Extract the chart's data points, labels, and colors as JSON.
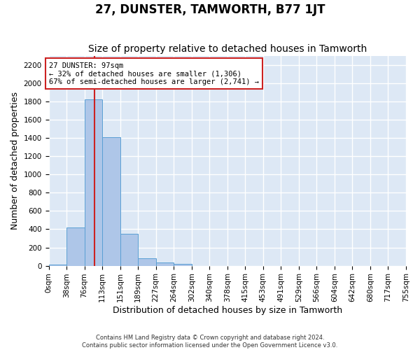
{
  "title": "27, DUNSTER, TAMWORTH, B77 1JT",
  "subtitle": "Size of property relative to detached houses in Tamworth",
  "xlabel": "Distribution of detached houses by size in Tamworth",
  "ylabel": "Number of detached properties",
  "footer_line1": "Contains HM Land Registry data © Crown copyright and database right 2024.",
  "footer_line2": "Contains public sector information licensed under the Open Government Licence v3.0.",
  "bin_labels": [
    "0sqm",
    "38sqm",
    "76sqm",
    "113sqm",
    "151sqm",
    "189sqm",
    "227sqm",
    "264sqm",
    "302sqm",
    "340sqm",
    "378sqm",
    "415sqm",
    "453sqm",
    "491sqm",
    "529sqm",
    "566sqm",
    "604sqm",
    "642sqm",
    "680sqm",
    "717sqm",
    "755sqm"
  ],
  "bar_values": [
    15,
    420,
    1820,
    1410,
    350,
    80,
    32,
    18,
    0,
    0,
    0,
    0,
    0,
    0,
    0,
    0,
    0,
    0,
    0,
    0
  ],
  "bar_color": "#aec6e8",
  "bar_edgecolor": "#5a9fd4",
  "ylim": [
    0,
    2300
  ],
  "yticks": [
    0,
    200,
    400,
    600,
    800,
    1000,
    1200,
    1400,
    1600,
    1800,
    2000,
    2200
  ],
  "property_sqm": 97,
  "annotation_text": "27 DUNSTER: 97sqm\n← 32% of detached houses are smaller (1,306)\n67% of semi-detached houses are larger (2,741) →",
  "vline_x": 97,
  "vline_color": "#cc2222",
  "annotation_box_edgecolor": "#cc2222",
  "bin_width": 38,
  "num_bins": 20,
  "background_color": "#ffffff",
  "plot_bg_color": "#dde8f5",
  "grid_color": "#ffffff",
  "title_fontsize": 12,
  "subtitle_fontsize": 10,
  "xlabel_fontsize": 9,
  "ylabel_fontsize": 9,
  "tick_fontsize": 7.5,
  "annotation_fontsize": 7.5
}
